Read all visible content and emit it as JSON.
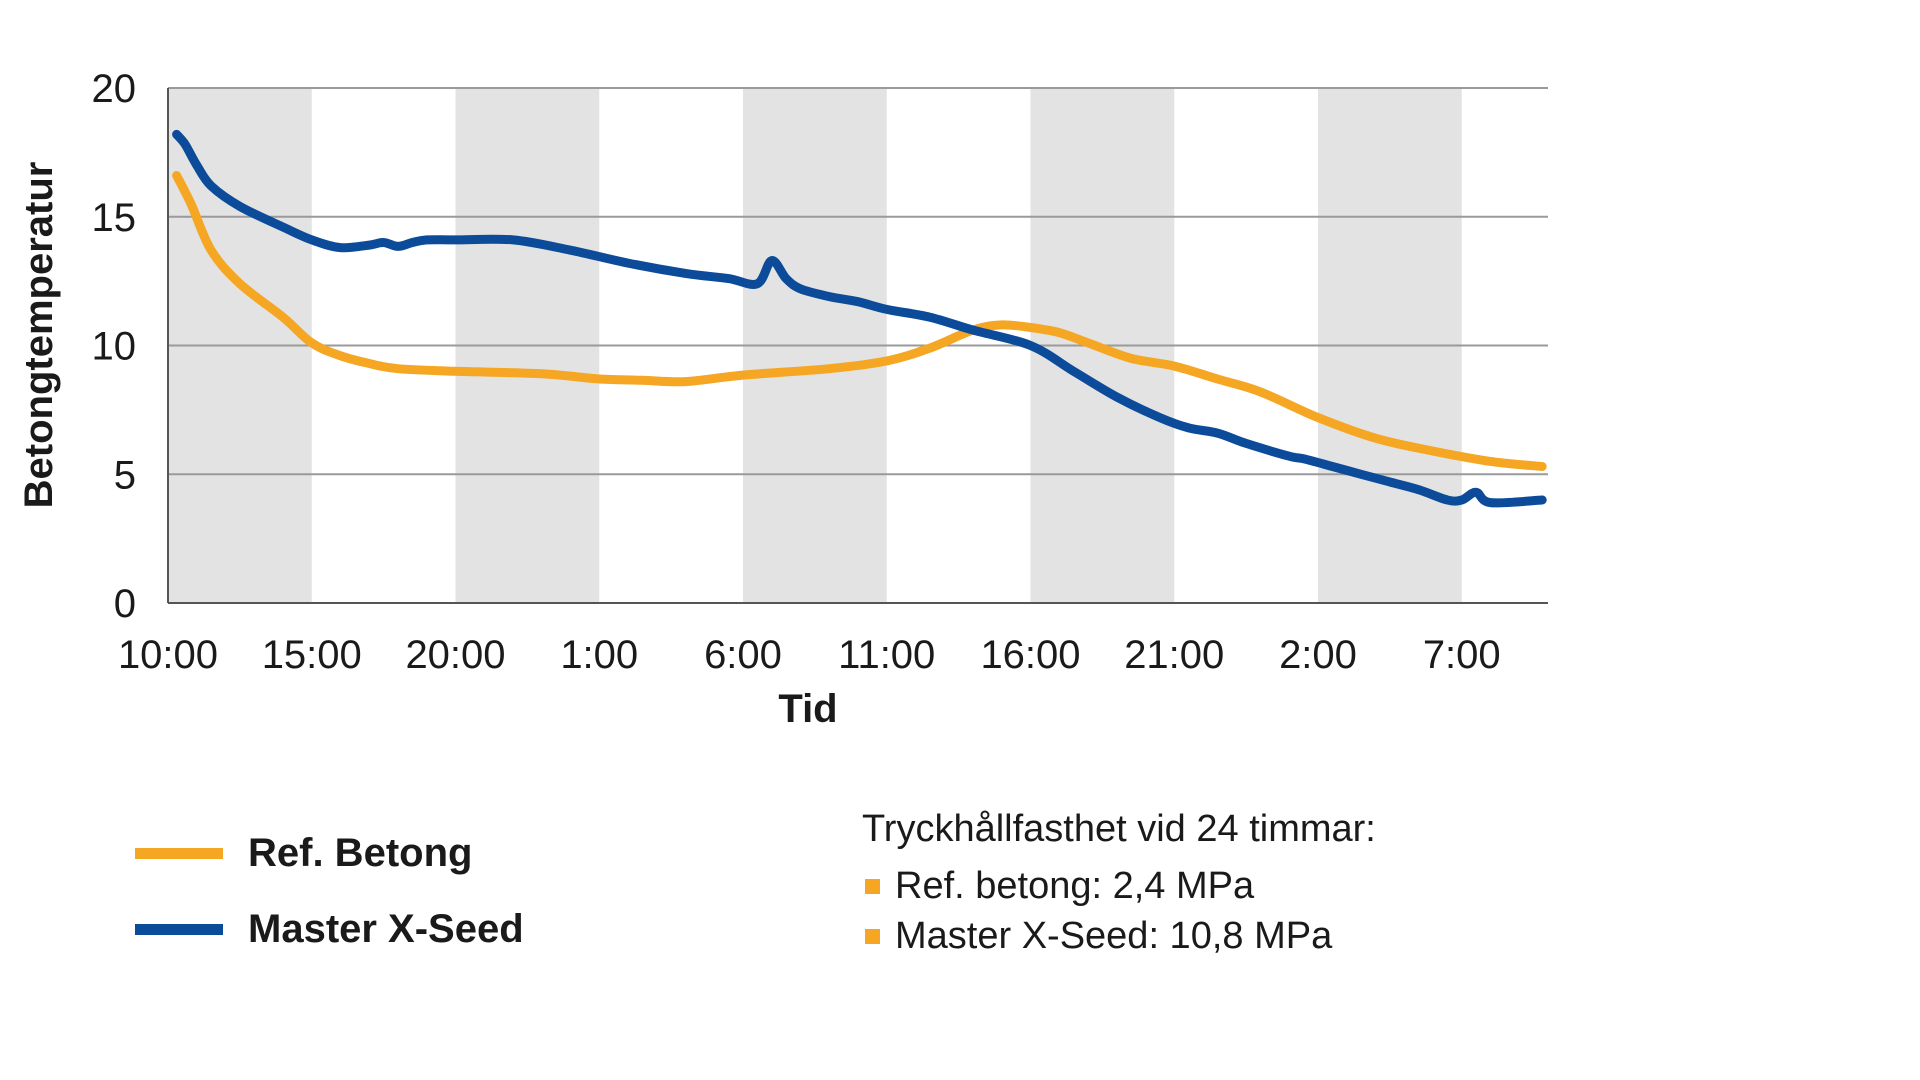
{
  "chart_data": {
    "type": "line",
    "title": "",
    "xlabel": "Tid",
    "ylabel": "Betongtemperatur",
    "ylim": [
      0,
      20
    ],
    "yticks": [
      0,
      5,
      10,
      15,
      20
    ],
    "x_range_hours": [
      0,
      48
    ],
    "xticks": [
      {
        "label": "10:00",
        "hour": 0
      },
      {
        "label": "15:00",
        "hour": 5
      },
      {
        "label": "20:00",
        "hour": 10
      },
      {
        "label": "1:00",
        "hour": 15
      },
      {
        "label": "6:00",
        "hour": 20
      },
      {
        "label": "11:00",
        "hour": 25
      },
      {
        "label": "16:00",
        "hour": 30
      },
      {
        "label": "21:00",
        "hour": 35
      },
      {
        "label": "2:00",
        "hour": 40
      },
      {
        "label": "7:00",
        "hour": 45
      }
    ],
    "shaded_bands_hours": [
      [
        0,
        5
      ],
      [
        10,
        15
      ],
      [
        20,
        25
      ],
      [
        30,
        35
      ],
      [
        40,
        45
      ]
    ],
    "grid": true,
    "series": [
      {
        "name": "Ref. Betong",
        "color": "#F5A623",
        "x": [
          0.3,
          0.8,
          1.5,
          2.5,
          4.0,
          5.0,
          6.0,
          7.0,
          8.0,
          10.0,
          13.0,
          15.0,
          16.5,
          18.0,
          20.0,
          23.0,
          25.0,
          26.5,
          28.0,
          29.0,
          30.0,
          31.0,
          32.0,
          33.5,
          35.0,
          36.5,
          38.0,
          40.0,
          42.0,
          44.0,
          46.0,
          47.8
        ],
        "y": [
          16.6,
          15.5,
          13.7,
          12.4,
          11.1,
          10.1,
          9.6,
          9.3,
          9.1,
          9.0,
          8.9,
          8.7,
          8.65,
          8.6,
          8.85,
          9.1,
          9.4,
          9.9,
          10.6,
          10.8,
          10.7,
          10.5,
          10.1,
          9.5,
          9.2,
          8.7,
          8.2,
          7.2,
          6.4,
          5.9,
          5.5,
          5.3
        ]
      },
      {
        "name": "Master X-Seed",
        "color": "#0B4B9A",
        "x": [
          0.3,
          0.6,
          1.0,
          1.5,
          2.5,
          4.0,
          5.0,
          6.0,
          7.0,
          7.5,
          8.0,
          8.5,
          9.0,
          10.0,
          12.0,
          14.0,
          16.0,
          18.0,
          19.5,
          20.5,
          21.0,
          21.5,
          22.0,
          23.0,
          24.0,
          25.0,
          26.5,
          28.0,
          30.0,
          31.5,
          33.0,
          34.5,
          35.5,
          36.5,
          37.5,
          39.0,
          39.5,
          40.5,
          41.5,
          42.5,
          43.5,
          44.5,
          45.0,
          45.5,
          46.0,
          47.8
        ],
        "y": [
          18.2,
          17.8,
          17.0,
          16.2,
          15.4,
          14.6,
          14.1,
          13.8,
          13.9,
          14.0,
          13.85,
          14.0,
          14.1,
          14.1,
          14.1,
          13.7,
          13.2,
          12.8,
          12.6,
          12.4,
          13.3,
          12.6,
          12.2,
          11.9,
          11.7,
          11.4,
          11.1,
          10.6,
          10.0,
          9.0,
          8.0,
          7.2,
          6.8,
          6.6,
          6.2,
          5.7,
          5.6,
          5.3,
          5.0,
          4.7,
          4.4,
          4.0,
          4.0,
          4.3,
          3.9,
          4.0
        ]
      }
    ],
    "legend": [
      "Ref. Betong",
      "Master X-Seed"
    ],
    "annotation": {
      "title": "Tryckhållfasthet vid 24 timmar:",
      "items": [
        "Ref. betong: 2,4 MPa",
        "Master X-Seed: 10,8 MPa"
      ],
      "bullet_color": "#F5A623"
    }
  },
  "colors": {
    "band": "#E3E3E3",
    "grid": "#9A9A9A",
    "axis": "#555555"
  }
}
